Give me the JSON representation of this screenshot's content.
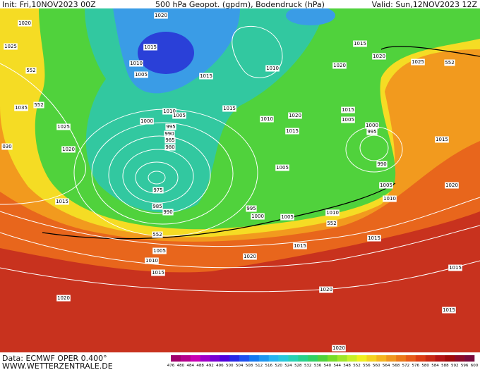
{
  "header": {
    "init": "Init: Fri,10NOV2023 00Z",
    "title": "500 hPa Geopot. (gpdm), Bodendruck (hPa)",
    "valid": "Valid: Sun,12NOV2023 12Z"
  },
  "footer": {
    "source": "Data: ECMWF OPER 0.400°",
    "site": "WWW.WETTERZENTRALE.DE"
  },
  "isobar_labels": [
    "1020",
    "1020",
    "1025",
    "1015",
    "1010",
    "1005",
    "1015",
    "1010",
    "1015",
    "1020",
    "1020",
    "1025",
    "552",
    "552",
    "552",
    "1035",
    "1010",
    "1005",
    "1000",
    "1015",
    "1010",
    "1020",
    "1015",
    "1005",
    "1000",
    "995",
    "1015",
    "995",
    "990",
    "985",
    "980",
    "1025",
    "1020",
    "030",
    "1005",
    "990",
    "975",
    "1015",
    "985",
    "990",
    "995",
    "1000",
    "1005",
    "1010",
    "552",
    "1005",
    "1010",
    "1020",
    "1015",
    "1015",
    "1015",
    "552",
    "1005",
    "1010",
    "1015",
    "1020",
    "1020",
    "1015",
    "1020",
    "1015",
    "1020"
  ],
  "legend": {
    "levels": [
      476,
      480,
      484,
      488,
      492,
      496,
      500,
      504,
      508,
      512,
      516,
      520,
      524,
      528,
      532,
      536,
      540,
      544,
      548,
      552,
      556,
      560,
      564,
      568,
      572,
      576,
      580,
      584,
      588,
      592,
      596,
      600
    ],
    "colors": [
      "#a0006e",
      "#b4008c",
      "#c800b4",
      "#a000c8",
      "#7800d2",
      "#5000dc",
      "#2828e6",
      "#1e50f0",
      "#1478f0",
      "#1e96f0",
      "#28b4f0",
      "#28c8dc",
      "#28d2b4",
      "#28d28c",
      "#32d264",
      "#50d23c",
      "#78dc28",
      "#a0e628",
      "#c8f028",
      "#f0f01e",
      "#f5d21e",
      "#f5b41e",
      "#f0961e",
      "#eb7819",
      "#e65a19",
      "#dc3c14",
      "#c82814",
      "#b41414",
      "#a00a0a",
      "#8c0a28",
      "#780a3c"
    ]
  }
}
